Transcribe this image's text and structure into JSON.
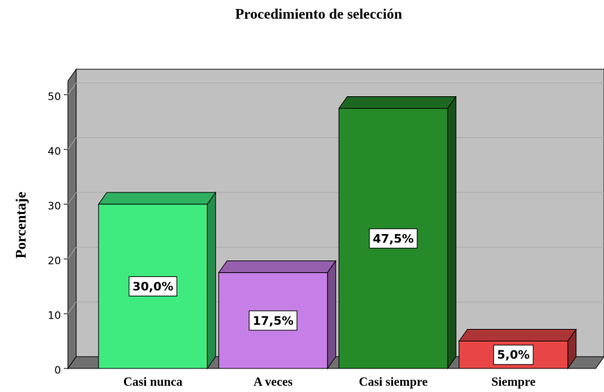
{
  "chart_data": {
    "type": "bar3d",
    "title": "Procedimiento de selección",
    "y_label": "Porcentaje",
    "categories": [
      "Casi nunca",
      "A veces",
      "Casi siempre",
      "Siempre"
    ],
    "values": [
      30,
      17.5,
      47.5,
      5
    ],
    "value_labels": [
      "30,0%",
      "17,5%",
      "47,5%",
      "5,0%"
    ],
    "colors": [
      "#3fea7f",
      "#c67fe6",
      "#278a2a",
      "#e84646"
    ],
    "ylim": [
      0,
      52.5
    ],
    "yticks": [
      0,
      10,
      20,
      30,
      40,
      50
    ],
    "grid": true
  }
}
